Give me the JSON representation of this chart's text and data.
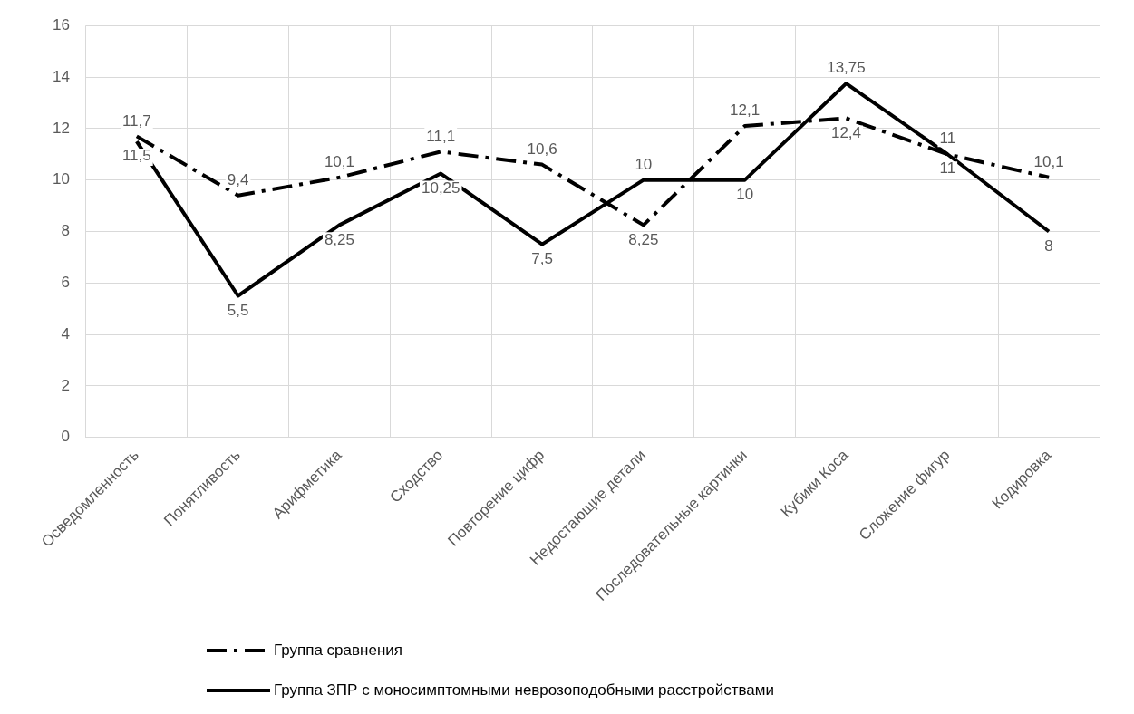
{
  "chart_data": {
    "type": "line",
    "categories": [
      "Осведомленность",
      "Понятливость",
      "Арифметика",
      "Сходство",
      "Повторение цифр",
      "Недостающие детали",
      "Последовательные картинки",
      "Кубики Коса",
      "Сложение фигур",
      "Кодировка"
    ],
    "series": [
      {
        "name": "Группа сравнения",
        "color": "#000000",
        "line_style": "dashed",
        "values": [
          11.7,
          9.4,
          10.1,
          11.1,
          10.6,
          8.25,
          12.1,
          12.4,
          11,
          10.1
        ],
        "value_labels": [
          "11,7",
          "9,4",
          "10,1",
          "11,1",
          "10,6",
          "8,25",
          "12,1",
          "12,4",
          "11",
          "10,1"
        ]
      },
      {
        "name": "Группа ЗПР с моносимптомными неврозоподобными расстройствами",
        "color": "#000000",
        "line_style": "solid",
        "values": [
          11.5,
          5.5,
          8.25,
          10.25,
          7.5,
          10,
          10,
          13.75,
          11,
          8
        ],
        "value_labels": [
          "11,5",
          "5,5",
          "8,25",
          "10,25",
          "7,5",
          "10",
          "10",
          "13,75",
          "11",
          "8"
        ]
      }
    ],
    "ylim": [
      0,
      16
    ],
    "yticks": [
      0,
      2,
      4,
      6,
      8,
      10,
      12,
      14,
      16
    ],
    "grid": true,
    "legend": "bottom",
    "marker": "none"
  }
}
